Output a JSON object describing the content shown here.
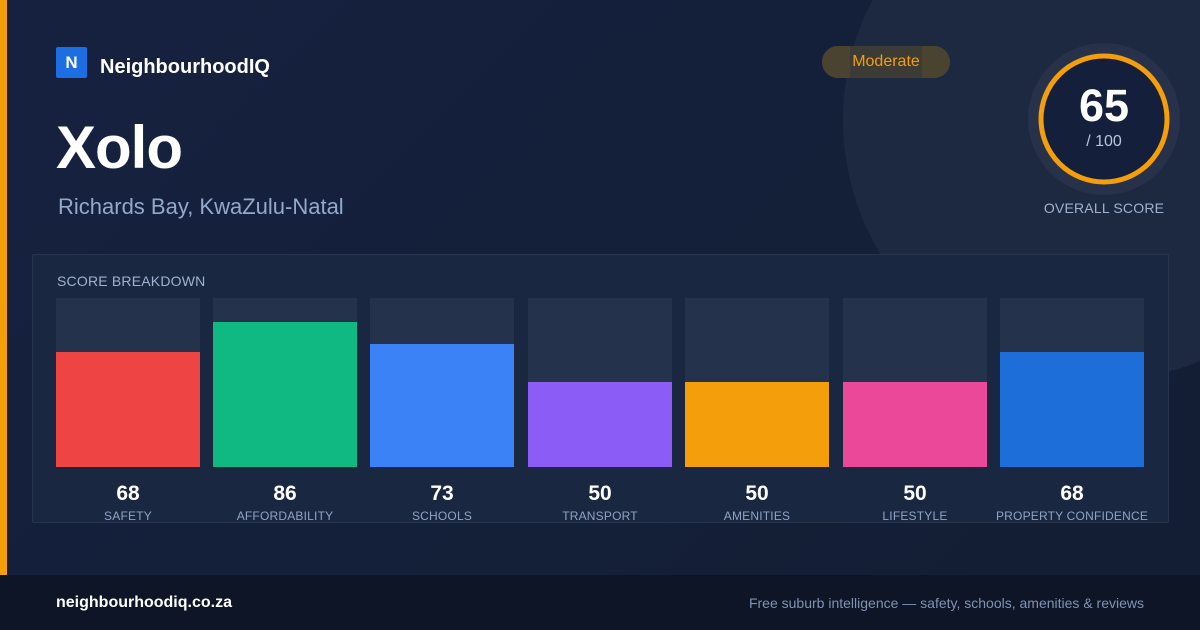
{
  "brand": {
    "logo_letter": "N",
    "name": "NeighbourhoodIQ",
    "color": "#1d6ee0"
  },
  "badge": {
    "label": "Moderate",
    "color": "#f59e0b"
  },
  "suburb": {
    "name": "Xolo",
    "location": "Richards Bay, KwaZulu-Natal"
  },
  "overall": {
    "score": "65",
    "max": "/ 100",
    "label": "OVERALL SCORE",
    "ring_color": "#f59e0b"
  },
  "breakdown": {
    "title": "SCORE BREAKDOWN",
    "metrics": [
      {
        "value": "68",
        "label": "SAFETY",
        "color": "#ef4444"
      },
      {
        "value": "86",
        "label": "AFFORDABILITY",
        "color": "#10b981"
      },
      {
        "value": "73",
        "label": "SCHOOLS",
        "color": "#3b82f6"
      },
      {
        "value": "50",
        "label": "TRANSPORT",
        "color": "#8b5cf6"
      },
      {
        "value": "50",
        "label": "AMENITIES",
        "color": "#f59e0b"
      },
      {
        "value": "50",
        "label": "LIFESTYLE",
        "color": "#ec4899"
      },
      {
        "value": "68",
        "label": "PROPERTY CONFIDENCE",
        "color": "#1d6ed8"
      }
    ]
  },
  "footer": {
    "domain": "neighbourhoodiq.co.za",
    "tagline": "Free suburb intelligence — safety, schools, amenities & reviews"
  }
}
